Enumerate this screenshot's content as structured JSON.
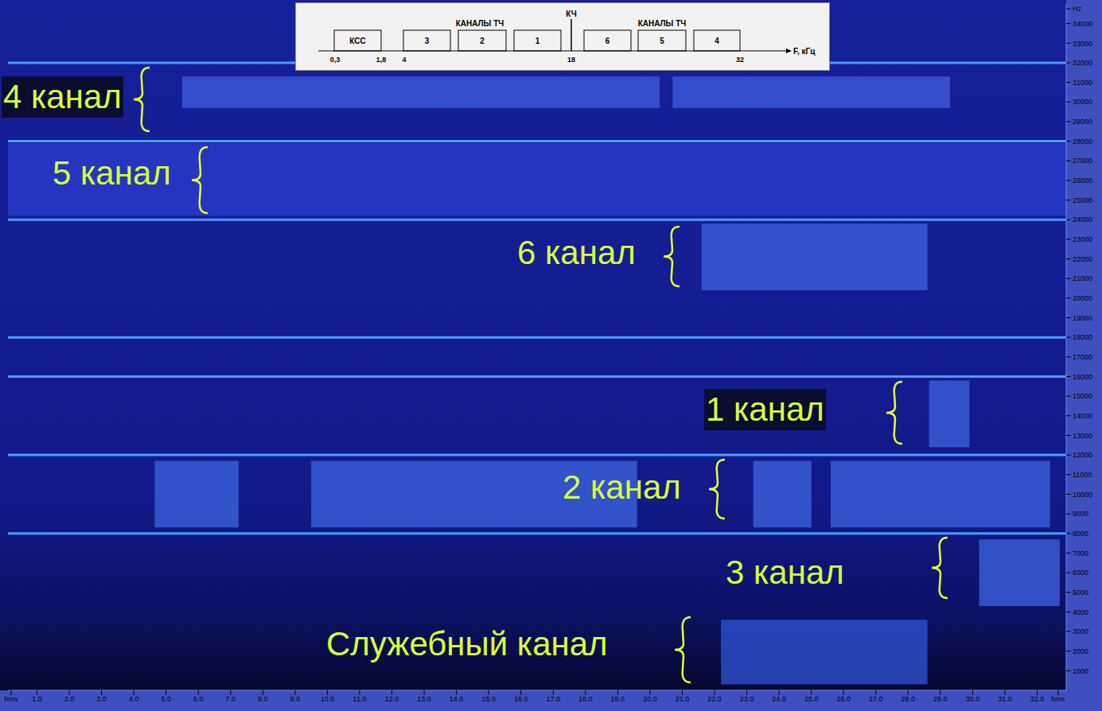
{
  "chart_data": {
    "type": "spectrogram",
    "xlim": [
      0.1,
      32.9
    ],
    "xticks": [
      {
        "value": 0.2,
        "label": "hms"
      },
      {
        "value": 1,
        "label": "1.0"
      },
      {
        "value": 2,
        "label": "2.0"
      },
      {
        "value": 3,
        "label": "3.0"
      },
      {
        "value": 4,
        "label": "4.0"
      },
      {
        "value": 5,
        "label": "5.0"
      },
      {
        "value": 6,
        "label": "6.0"
      },
      {
        "value": 7,
        "label": "7.0"
      },
      {
        "value": 8,
        "label": "8.0"
      },
      {
        "value": 9,
        "label": "9.0"
      },
      {
        "value": 10,
        "label": "10.0"
      },
      {
        "value": 11,
        "label": "11.0"
      },
      {
        "value": 12,
        "label": "12.0"
      },
      {
        "value": 13,
        "label": "13.0"
      },
      {
        "value": 14,
        "label": "14.0"
      },
      {
        "value": 15,
        "label": "15.0"
      },
      {
        "value": 16,
        "label": "16.0"
      },
      {
        "value": 17,
        "label": "17.0"
      },
      {
        "value": 18,
        "label": "18.0"
      },
      {
        "value": 19,
        "label": "19.0"
      },
      {
        "value": 20,
        "label": "20.0"
      },
      {
        "value": 21,
        "label": "21.0"
      },
      {
        "value": 22,
        "label": "22.0"
      },
      {
        "value": 23,
        "label": "23.0"
      },
      {
        "value": 24,
        "label": "24.0"
      },
      {
        "value": 25,
        "label": "25.0"
      },
      {
        "value": 26,
        "label": "26.0"
      },
      {
        "value": 27,
        "label": "27.0"
      },
      {
        "value": 28,
        "label": "28.0"
      },
      {
        "value": 29,
        "label": "29.0"
      },
      {
        "value": 30,
        "label": "30.0"
      },
      {
        "value": 31,
        "label": "31.0"
      },
      {
        "value": 32,
        "label": "32.0"
      },
      {
        "value": 32.65,
        "label": "hms"
      }
    ],
    "ylim": [
      0,
      35000
    ],
    "yticks": [
      1000,
      2000,
      3000,
      4000,
      5000,
      6000,
      7000,
      8000,
      9000,
      10000,
      11000,
      12000,
      13000,
      14000,
      15000,
      16000,
      17000,
      18000,
      19000,
      20000,
      21000,
      22000,
      23000,
      24000,
      25000,
      26000,
      27000,
      28000,
      29000,
      30000,
      31000,
      32000,
      33000,
      34000,
      {
        "value": 34750,
        "label": "Hz"
      }
    ],
    "tones": [
      32000,
      28000,
      24000,
      18000,
      16000,
      12000,
      8000
    ],
    "channels": [
      {
        "label": "4 канал",
        "color": "#3f5fe0",
        "regions": [
          {
            "x": [
              5.5,
              20.3
            ],
            "y": [
              29700,
              31300
            ]
          },
          {
            "x": [
              20.7,
              29.3
            ],
            "y": [
              29700,
              31300
            ]
          }
        ]
      },
      {
        "label": "5 канал",
        "color": "#2a3fd0",
        "regions": [
          {
            "x": [
              0.1,
              32.9
            ],
            "y": [
              24200,
              27900
            ]
          }
        ]
      },
      {
        "label": "6 канал",
        "color": "#3d66e0",
        "regions": [
          {
            "x": [
              21.6,
              28.6
            ],
            "y": [
              20400,
              23800
            ]
          }
        ]
      },
      {
        "label": "1 канал",
        "color": "#3d66e0",
        "regions": [
          {
            "x": [
              28.65,
              29.9
            ],
            "y": [
              12400,
              15800
            ]
          }
        ]
      },
      {
        "label": "2 канал",
        "color": "#3d66e0",
        "regions": [
          {
            "x": [
              4.65,
              7.25
            ],
            "y": [
              8300,
              11700
            ]
          },
          {
            "x": [
              9.5,
              19.6
            ],
            "y": [
              8300,
              11700
            ]
          },
          {
            "x": [
              23.2,
              25.0
            ],
            "y": [
              8300,
              11700
            ]
          },
          {
            "x": [
              25.6,
              32.4
            ],
            "y": [
              8300,
              11700
            ]
          }
        ]
      },
      {
        "label": "3 канал",
        "color": "#3d66e0",
        "regions": [
          {
            "x": [
              30.2,
              32.7
            ],
            "y": [
              4300,
              7700
            ]
          }
        ]
      },
      {
        "label": "Служебный канал",
        "color": "#2f55d8",
        "regions": [
          {
            "x": [
              22.2,
              28.6
            ],
            "y": [
              300,
              3600
            ]
          }
        ]
      }
    ]
  },
  "inset": {
    "boxes": [
      "КСС",
      "3",
      "2",
      "1",
      "6",
      "5",
      "4"
    ],
    "group_label": "КАНАЛЫ ТЧ",
    "carrier": "КЧ",
    "axis_label": "F, кГц",
    "axis_ticks": [
      "0,3",
      "1,8",
      "4",
      "18",
      "32"
    ]
  }
}
